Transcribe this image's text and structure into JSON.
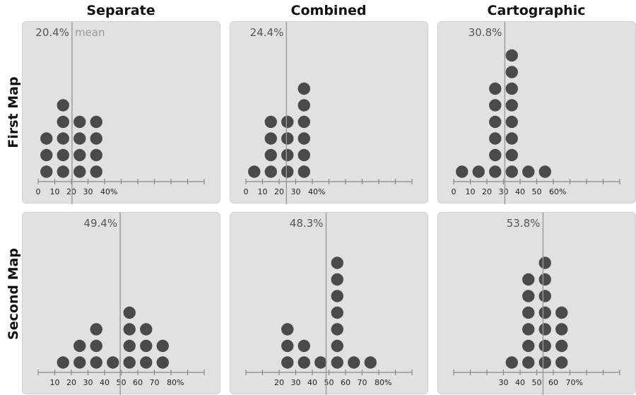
{
  "column_titles": [
    "Separate",
    "Combined",
    "Cartographic"
  ],
  "row_titles": [
    "First Map",
    "Second Map"
  ],
  "colors": {
    "panel": "#e1e1e1",
    "dot": "#4a4a4a",
    "axis": "#888888",
    "mean_line": "#999999",
    "mean_text": "#555555"
  },
  "chart_data": [
    {
      "type": "scatter",
      "map": "First Map",
      "condition": "Separate",
      "mean": 20.4,
      "mean_label": "20.4%",
      "mean_note": "mean",
      "xlim": [
        0,
        100
      ],
      "tick_step": 10,
      "tick_labels": [
        {
          "v": 0,
          "t": "0"
        },
        {
          "v": 10,
          "t": "10"
        },
        {
          "v": 20,
          "t": "20"
        },
        {
          "v": 30,
          "t": "30"
        },
        {
          "v": 40,
          "t": "40%"
        }
      ],
      "dot_bins": [
        5,
        15,
        25,
        35
      ],
      "dot_counts": [
        3,
        5,
        4,
        4
      ]
    },
    {
      "type": "scatter",
      "map": "First Map",
      "condition": "Combined",
      "mean": 24.4,
      "mean_label": "24.4%",
      "mean_note": "",
      "xlim": [
        0,
        100
      ],
      "tick_step": 10,
      "tick_labels": [
        {
          "v": 0,
          "t": "0"
        },
        {
          "v": 10,
          "t": "10"
        },
        {
          "v": 20,
          "t": "20"
        },
        {
          "v": 30,
          "t": "30"
        },
        {
          "v": 40,
          "t": "40%"
        }
      ],
      "dot_bins": [
        5,
        15,
        25,
        35
      ],
      "dot_counts": [
        1,
        4,
        4,
        6
      ]
    },
    {
      "type": "scatter",
      "map": "First Map",
      "condition": "Cartographic",
      "mean": 30.8,
      "mean_label": "30.8%",
      "mean_note": "",
      "xlim": [
        0,
        100
      ],
      "tick_step": 10,
      "tick_labels": [
        {
          "v": 0,
          "t": "0"
        },
        {
          "v": 10,
          "t": "10"
        },
        {
          "v": 20,
          "t": "20"
        },
        {
          "v": 30,
          "t": "30"
        },
        {
          "v": 40,
          "t": "40"
        },
        {
          "v": 50,
          "t": "50"
        },
        {
          "v": 60,
          "t": "60%"
        }
      ],
      "dot_bins": [
        5,
        15,
        25,
        35,
        45,
        55
      ],
      "dot_counts": [
        1,
        1,
        6,
        8,
        1,
        1
      ]
    },
    {
      "type": "scatter",
      "map": "Second Map",
      "condition": "Separate",
      "mean": 49.4,
      "mean_label": "49.4%",
      "mean_note": "",
      "xlim": [
        0,
        100
      ],
      "tick_step": 10,
      "tick_labels": [
        {
          "v": 10,
          "t": "10"
        },
        {
          "v": 20,
          "t": "20"
        },
        {
          "v": 30,
          "t": "30"
        },
        {
          "v": 40,
          "t": "40"
        },
        {
          "v": 50,
          "t": "50"
        },
        {
          "v": 60,
          "t": "60"
        },
        {
          "v": 70,
          "t": "70"
        },
        {
          "v": 80,
          "t": "80%"
        }
      ],
      "dot_bins": [
        15,
        25,
        35,
        45,
        55,
        65,
        75
      ],
      "dot_counts": [
        1,
        2,
        3,
        1,
        4,
        3,
        2
      ]
    },
    {
      "type": "scatter",
      "map": "Second Map",
      "condition": "Combined",
      "mean": 48.3,
      "mean_label": "48.3%",
      "mean_note": "",
      "xlim": [
        0,
        100
      ],
      "tick_step": 10,
      "tick_labels": [
        {
          "v": 20,
          "t": "20"
        },
        {
          "v": 30,
          "t": "30"
        },
        {
          "v": 40,
          "t": "40"
        },
        {
          "v": 50,
          "t": "50"
        },
        {
          "v": 60,
          "t": "60"
        },
        {
          "v": 70,
          "t": "70"
        },
        {
          "v": 80,
          "t": "80%"
        }
      ],
      "dot_bins": [
        25,
        35,
        45,
        55,
        65,
        75
      ],
      "dot_counts": [
        3,
        2,
        1,
        7,
        1,
        1
      ]
    },
    {
      "type": "scatter",
      "map": "Second Map",
      "condition": "Cartographic",
      "mean": 53.8,
      "mean_label": "53.8%",
      "mean_note": "",
      "xlim": [
        0,
        100
      ],
      "tick_step": 10,
      "tick_labels": [
        {
          "v": 30,
          "t": "30"
        },
        {
          "v": 40,
          "t": "40"
        },
        {
          "v": 50,
          "t": "50"
        },
        {
          "v": 60,
          "t": "60"
        },
        {
          "v": 70,
          "t": "70%"
        }
      ],
      "dot_bins": [
        35,
        45,
        55,
        65
      ],
      "dot_counts": [
        1,
        6,
        7,
        4
      ]
    }
  ]
}
